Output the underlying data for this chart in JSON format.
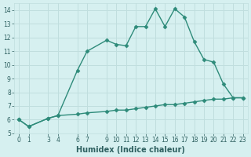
{
  "xlabel": "Humidex (Indice chaleur)",
  "x": [
    0,
    1,
    3,
    4,
    6,
    7,
    9,
    10,
    11,
    12,
    13,
    14,
    15,
    16,
    17,
    18,
    19,
    20,
    21,
    22,
    23
  ],
  "y_upper": [
    6.0,
    5.5,
    6.1,
    6.3,
    9.6,
    11.0,
    11.8,
    11.5,
    11.4,
    12.8,
    12.8,
    14.1,
    12.8,
    14.1,
    13.5,
    11.7,
    10.4,
    10.2,
    8.6,
    7.6,
    7.6
  ],
  "y_lower": [
    6.0,
    5.5,
    6.1,
    6.3,
    6.4,
    6.5,
    6.6,
    6.7,
    6.7,
    6.8,
    6.9,
    7.0,
    7.1,
    7.1,
    7.2,
    7.3,
    7.4,
    7.5,
    7.5,
    7.6,
    7.6
  ],
  "line_color": "#2e8b7a",
  "bg_color": "#d6f0f0",
  "grid_color": "#c0dede",
  "ylim": [
    5,
    14.5
  ],
  "xlim": [
    -0.5,
    23.5
  ],
  "yticks": [
    5,
    6,
    7,
    8,
    9,
    10,
    11,
    12,
    13,
    14
  ],
  "xticks": [
    0,
    1,
    3,
    4,
    6,
    7,
    9,
    10,
    11,
    12,
    13,
    14,
    15,
    16,
    17,
    18,
    19,
    20,
    21,
    22,
    23
  ],
  "font_color": "#2e6060",
  "marker": "D",
  "markersize": 2.5,
  "linewidth": 1.0,
  "tick_fontsize": 5.5,
  "xlabel_fontsize": 7.0
}
